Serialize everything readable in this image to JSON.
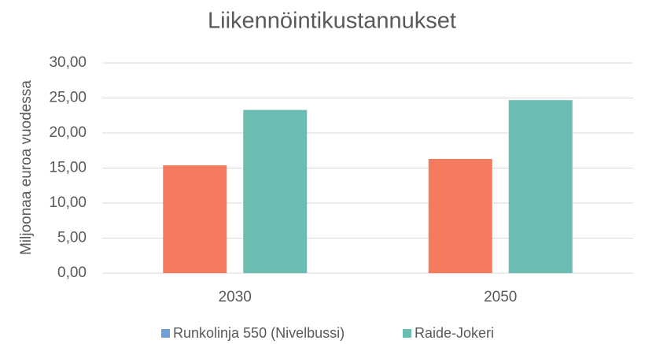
{
  "chart_data": {
    "type": "bar",
    "title": "Liikennöintikustannukset",
    "y_label": "Miljoonaa euroa vuodessa",
    "categories": [
      "2030",
      "2050"
    ],
    "series": [
      {
        "name": "Runkolinja 550 (Nivelbussi)",
        "color": "#f47b5d",
        "legend_color": "#6fa0d8",
        "values": [
          15.4,
          16.3
        ]
      },
      {
        "name": "Raide-Jokeri",
        "color": "#6bbdb2",
        "legend_color": "#6bbdb2",
        "values": [
          23.3,
          24.7
        ]
      }
    ],
    "ylim": [
      0,
      30
    ],
    "yticks": [
      {
        "value": 0,
        "label": "0,00"
      },
      {
        "value": 5,
        "label": "5,00"
      },
      {
        "value": 10,
        "label": "10,00"
      },
      {
        "value": 15,
        "label": "15,00"
      },
      {
        "value": 20,
        "label": "20,00"
      },
      {
        "value": 25,
        "label": "25,00"
      },
      {
        "value": 30,
        "label": "30,00"
      }
    ],
    "grid": true,
    "legend": "bottom"
  }
}
